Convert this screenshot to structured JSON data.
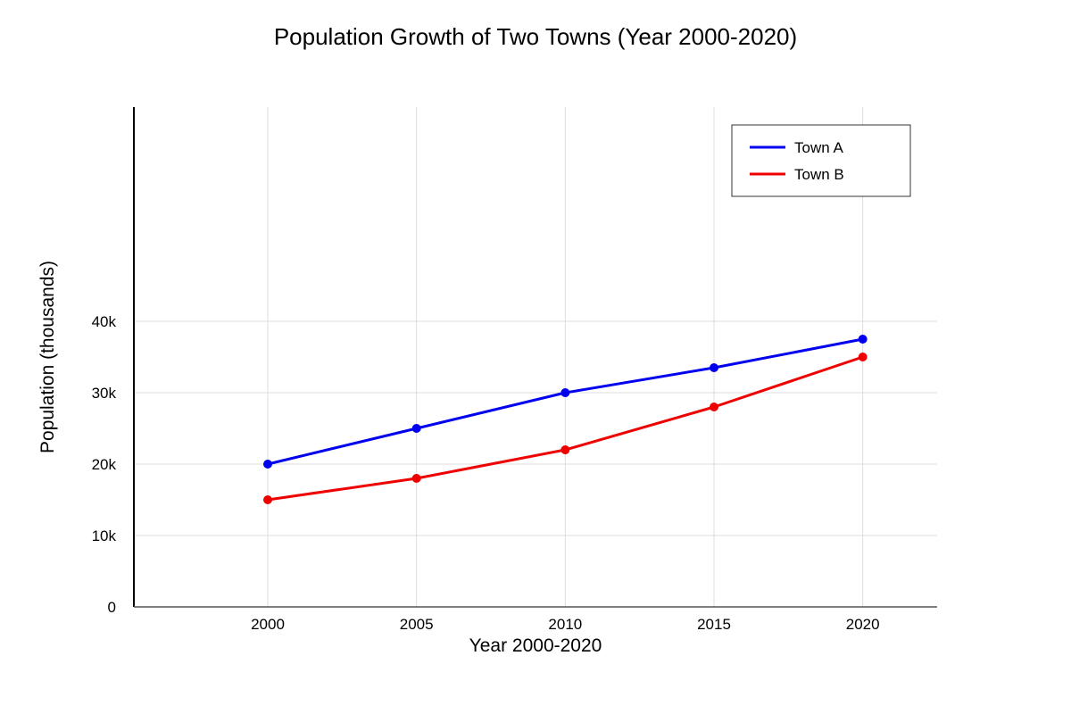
{
  "chart_data": {
    "type": "line",
    "title": "Population Growth of Two Towns (Year 2000-2020)",
    "xlabel": "Year 2000-2020",
    "ylabel": "Population (thousands)",
    "x": [
      2000,
      2005,
      2010,
      2015,
      2020
    ],
    "x_tick_labels": [
      "2000",
      "2005",
      "2010",
      "2015",
      "2020"
    ],
    "y_tick_values": [
      0,
      10000,
      20000,
      30000,
      40000
    ],
    "y_tick_labels": [
      "0",
      "10k",
      "20k",
      "30k",
      "40k"
    ],
    "ylim": [
      0,
      70000
    ],
    "xlim": [
      1995.5,
      2022.5
    ],
    "grid": true,
    "legend_position": "top-right",
    "series": [
      {
        "name": "Town A",
        "color": "#0000ee",
        "values": [
          20000,
          25000,
          30000,
          33500,
          37500
        ]
      },
      {
        "name": "Town B",
        "color": "#ee0000",
        "values": [
          15000,
          18000,
          22000,
          28000,
          35000
        ]
      }
    ]
  }
}
